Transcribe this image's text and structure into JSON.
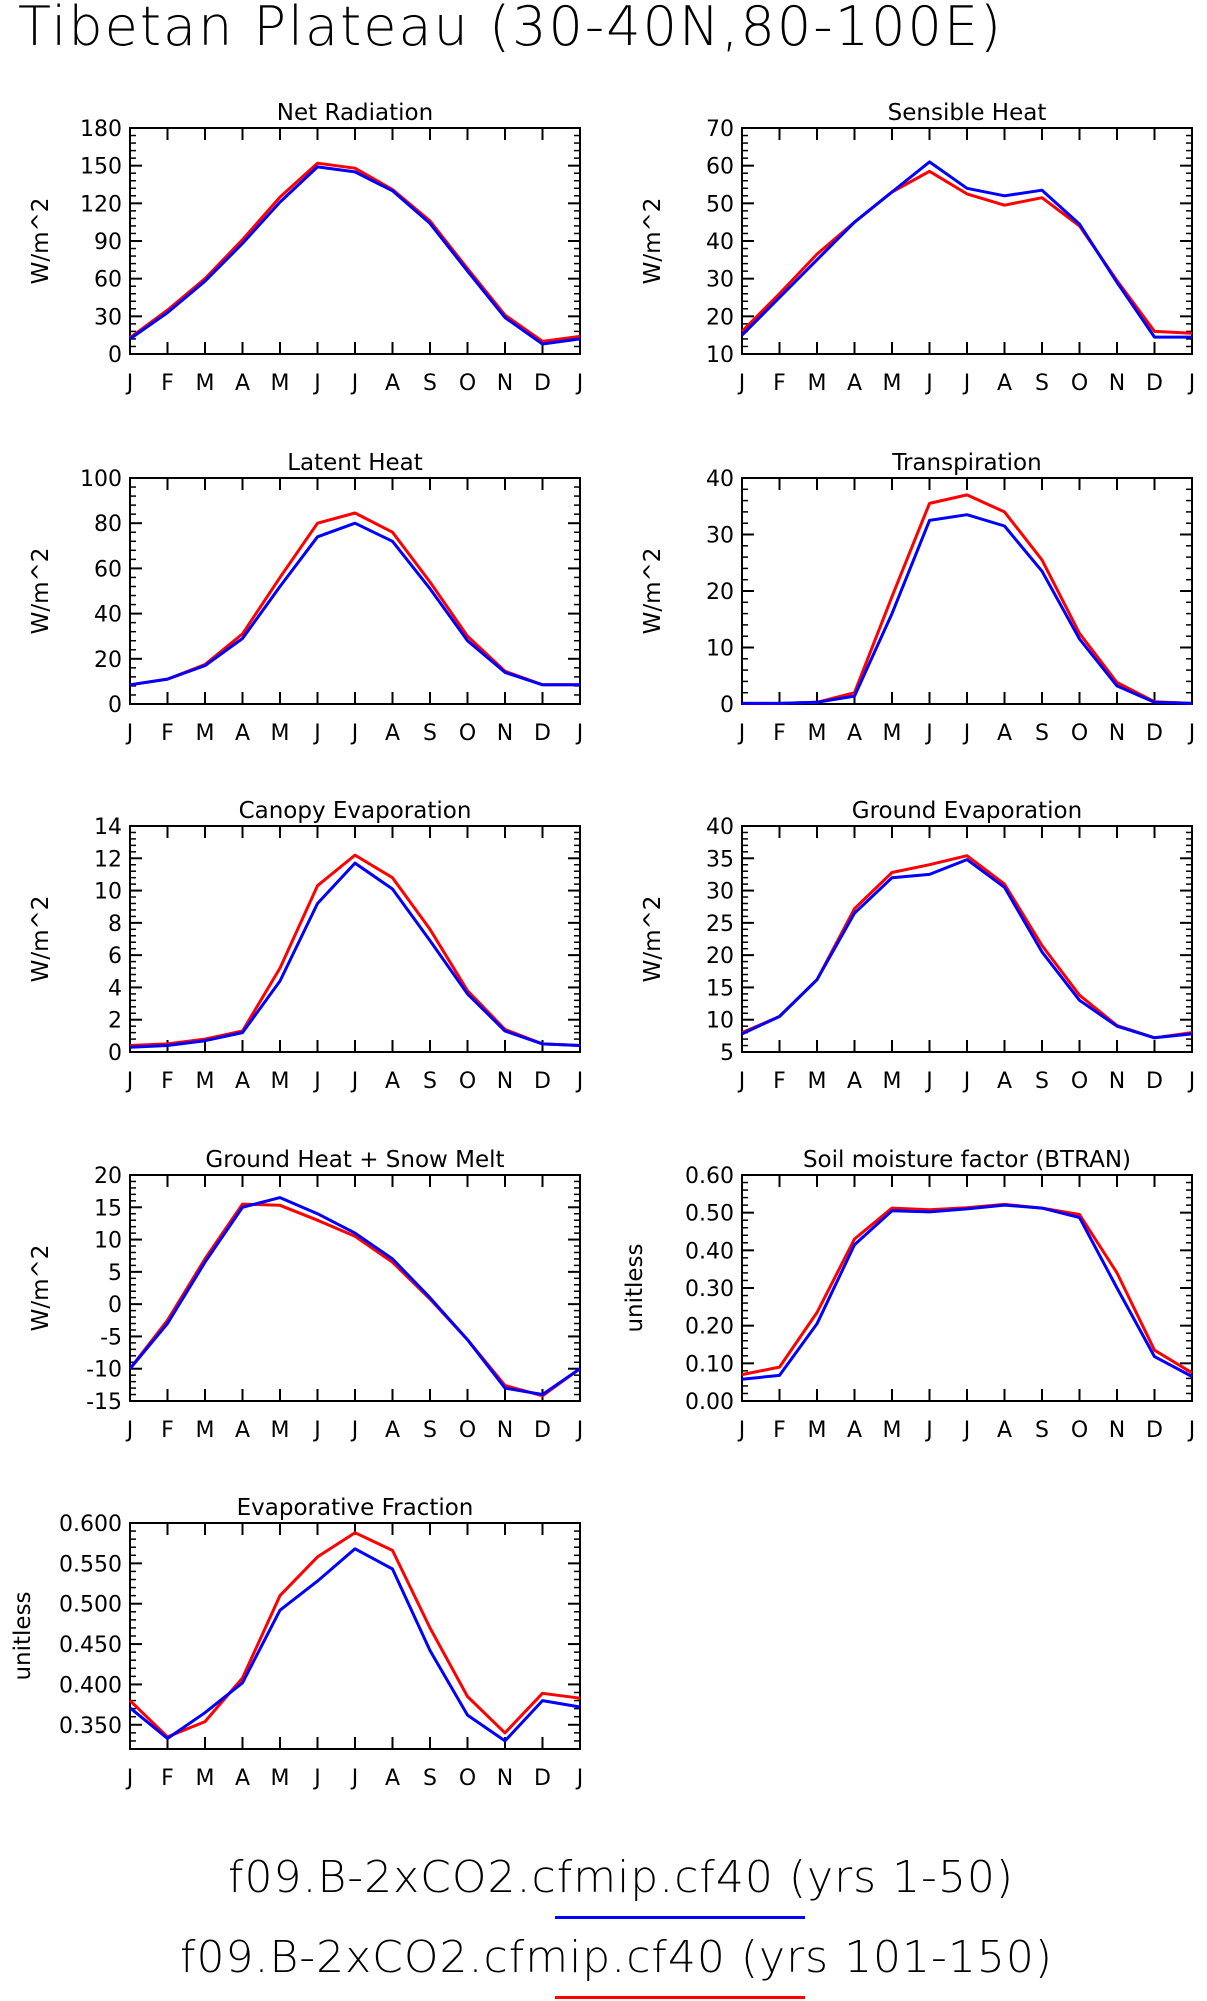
{
  "title": "Tibetan Plateau (30-40N,80-100E)",
  "colors": {
    "series1": "#0000ff",
    "series2": "#ff0000",
    "axis": "#000000"
  },
  "legend": [
    {
      "label": "f09.B-2xCO2.cfmip.cf40 (yrs 1-50)",
      "color": "#0000ff"
    },
    {
      "label": "f09.B-2xCO2.cfmip.cf40 (yrs 101-150)",
      "color": "#ff0000"
    }
  ],
  "chart_data": [
    {
      "type": "line",
      "title": "Net Radiation",
      "ylabel": "W/m^2",
      "x": [
        "J",
        "F",
        "M",
        "A",
        "M",
        "J",
        "J",
        "A",
        "S",
        "O",
        "N",
        "D",
        "J"
      ],
      "ylim": [
        0,
        180
      ],
      "yticks": [
        "0",
        "30",
        "60",
        "90",
        "120",
        "150",
        "180"
      ],
      "series": [
        {
          "name": "f09.B-2xCO2.cfmip.cf40 (yrs 1-50)",
          "color": "#0000ff",
          "values": [
            12,
            33,
            58,
            88,
            121,
            149,
            145,
            130,
            104,
            66,
            29,
            8,
            12
          ]
        },
        {
          "name": "f09.B-2xCO2.cfmip.cf40 (yrs 101-150)",
          "color": "#ff0000",
          "values": [
            13,
            35,
            60,
            91,
            125,
            152,
            148,
            131,
            106,
            68,
            31,
            10,
            14
          ]
        }
      ]
    },
    {
      "type": "line",
      "title": "Sensible Heat",
      "ylabel": "W/m^2",
      "x": [
        "J",
        "F",
        "M",
        "A",
        "M",
        "J",
        "J",
        "A",
        "S",
        "O",
        "N",
        "D",
        "J"
      ],
      "ylim": [
        10,
        70
      ],
      "yticks": [
        "10",
        "20",
        "30",
        "40",
        "50",
        "60",
        "70"
      ],
      "series": [
        {
          "name": "f09.B-2xCO2.cfmip.cf40 (yrs 1-50)",
          "color": "#0000ff",
          "values": [
            15,
            25,
            35,
            45,
            53,
            61,
            54,
            52,
            53.5,
            44.5,
            29,
            14.5,
            14.5
          ]
        },
        {
          "name": "f09.B-2xCO2.cfmip.cf40 (yrs 101-150)",
          "color": "#ff0000",
          "values": [
            16,
            26,
            36.5,
            45,
            53,
            58.5,
            52.5,
            49.5,
            51.5,
            44,
            29.5,
            16,
            15.5
          ]
        }
      ]
    },
    {
      "type": "line",
      "title": "Latent Heat",
      "ylabel": "W/m^2",
      "x": [
        "J",
        "F",
        "M",
        "A",
        "M",
        "J",
        "J",
        "A",
        "S",
        "O",
        "N",
        "D",
        "J"
      ],
      "ylim": [
        0,
        100
      ],
      "yticks": [
        "0",
        "20",
        "40",
        "60",
        "80",
        "100"
      ],
      "series": [
        {
          "name": "f09.B-2xCO2.cfmip.cf40 (yrs 1-50)",
          "color": "#0000ff",
          "values": [
            8.5,
            11,
            17,
            29,
            52,
            74,
            80,
            72,
            51,
            28,
            14,
            8.5,
            8.5
          ]
        },
        {
          "name": "f09.B-2xCO2.cfmip.cf40 (yrs 101-150)",
          "color": "#ff0000",
          "values": [
            8.5,
            11,
            17.5,
            31,
            56,
            80,
            84.5,
            76,
            54,
            30,
            14.5,
            8.5,
            8.5
          ]
        }
      ]
    },
    {
      "type": "line",
      "title": "Transpiration",
      "ylabel": "W/m^2",
      "x": [
        "J",
        "F",
        "M",
        "A",
        "M",
        "J",
        "J",
        "A",
        "S",
        "O",
        "N",
        "D",
        "J"
      ],
      "ylim": [
        0,
        40
      ],
      "yticks": [
        "0",
        "10",
        "20",
        "30",
        "40"
      ],
      "series": [
        {
          "name": "f09.B-2xCO2.cfmip.cf40 (yrs 1-50)",
          "color": "#0000ff",
          "values": [
            0.1,
            0.1,
            0.3,
            1.4,
            16,
            32.5,
            33.5,
            31.5,
            23.5,
            11.5,
            3.2,
            0.3,
            0.1
          ]
        },
        {
          "name": "f09.B-2xCO2.cfmip.cf40 (yrs 101-150)",
          "color": "#ff0000",
          "values": [
            0.1,
            0.1,
            0.3,
            2,
            19,
            35.5,
            37,
            34,
            25.5,
            12.5,
            3.8,
            0.4,
            0.1
          ]
        }
      ]
    },
    {
      "type": "line",
      "title": "Canopy Evaporation",
      "ylabel": "W/m^2",
      "x": [
        "J",
        "F",
        "M",
        "A",
        "M",
        "J",
        "J",
        "A",
        "S",
        "O",
        "N",
        "D",
        "J"
      ],
      "ylim": [
        0,
        14
      ],
      "yticks": [
        "0",
        "2",
        "4",
        "6",
        "8",
        "10",
        "12",
        "14"
      ],
      "series": [
        {
          "name": "f09.B-2xCO2.cfmip.cf40 (yrs 1-50)",
          "color": "#0000ff",
          "values": [
            0.3,
            0.4,
            0.7,
            1.2,
            4.4,
            9.2,
            11.7,
            10.1,
            6.9,
            3.6,
            1.3,
            0.5,
            0.4
          ]
        },
        {
          "name": "f09.B-2xCO2.cfmip.cf40 (yrs 101-150)",
          "color": "#ff0000",
          "values": [
            0.4,
            0.5,
            0.8,
            1.3,
            5.2,
            10.3,
            12.2,
            10.8,
            7.6,
            3.8,
            1.4,
            0.5,
            0.4
          ]
        }
      ]
    },
    {
      "type": "line",
      "title": "Ground Evaporation",
      "ylabel": "W/m^2",
      "x": [
        "J",
        "F",
        "M",
        "A",
        "M",
        "J",
        "J",
        "A",
        "S",
        "O",
        "N",
        "D",
        "J"
      ],
      "ylim": [
        5,
        40
      ],
      "yticks": [
        "5",
        "10",
        "15",
        "20",
        "25",
        "30",
        "35",
        "40"
      ],
      "series": [
        {
          "name": "f09.B-2xCO2.cfmip.cf40 (yrs 1-50)",
          "color": "#0000ff",
          "values": [
            7.8,
            10.5,
            16.2,
            26.5,
            32,
            32.5,
            34.8,
            30.5,
            20.5,
            13,
            9,
            7.2,
            7.8
          ]
        },
        {
          "name": "f09.B-2xCO2.cfmip.cf40 (yrs 101-150)",
          "color": "#ff0000",
          "values": [
            8,
            10.5,
            16.2,
            27.2,
            32.8,
            34,
            35.4,
            31,
            21.5,
            13.8,
            9.1,
            7.2,
            8
          ]
        }
      ]
    },
    {
      "type": "line",
      "title": "Ground Heat + Snow Melt",
      "ylabel": "W/m^2",
      "x": [
        "J",
        "F",
        "M",
        "A",
        "M",
        "J",
        "J",
        "A",
        "S",
        "O",
        "N",
        "D",
        "J"
      ],
      "ylim": [
        -15,
        20
      ],
      "yticks": [
        "-15",
        "-10",
        "-5",
        "0",
        "5",
        "10",
        "15",
        "20"
      ],
      "series": [
        {
          "name": "f09.B-2xCO2.cfmip.cf40 (yrs 1-50)",
          "color": "#0000ff",
          "values": [
            -10,
            -3,
            6.5,
            15,
            16.5,
            14,
            11,
            7,
            1,
            -5.5,
            -13,
            -14,
            -10
          ]
        },
        {
          "name": "f09.B-2xCO2.cfmip.cf40 (yrs 101-150)",
          "color": "#ff0000",
          "values": [
            -10,
            -2.5,
            7,
            15.5,
            15.3,
            13,
            10.5,
            6.5,
            0.8,
            -5.5,
            -12.6,
            -14.2,
            -10
          ]
        }
      ]
    },
    {
      "type": "line",
      "title": "Soil moisture factor (BTRAN)",
      "ylabel": "unitless",
      "x": [
        "J",
        "F",
        "M",
        "A",
        "M",
        "J",
        "J",
        "A",
        "S",
        "O",
        "N",
        "D",
        "J"
      ],
      "ylim": [
        0,
        0.6
      ],
      "yticks": [
        "0.00",
        "0.10",
        "0.20",
        "0.30",
        "0.40",
        "0.50",
        "0.60"
      ],
      "series": [
        {
          "name": "f09.B-2xCO2.cfmip.cf40 (yrs 1-50)",
          "color": "#0000ff",
          "values": [
            0.058,
            0.068,
            0.205,
            0.415,
            0.505,
            0.502,
            0.51,
            0.52,
            0.512,
            0.487,
            0.3,
            0.118,
            0.065
          ]
        },
        {
          "name": "f09.B-2xCO2.cfmip.cf40 (yrs 101-150)",
          "color": "#ff0000",
          "values": [
            0.07,
            0.09,
            0.235,
            0.43,
            0.512,
            0.508,
            0.513,
            0.522,
            0.512,
            0.495,
            0.34,
            0.135,
            0.075
          ]
        }
      ]
    },
    {
      "type": "line",
      "title": "Evaporative Fraction",
      "ylabel": "unitless",
      "x": [
        "J",
        "F",
        "M",
        "A",
        "M",
        "J",
        "J",
        "A",
        "S",
        "O",
        "N",
        "D",
        "J"
      ],
      "ylim": [
        0.32,
        0.6
      ],
      "yticks": [
        "0.350",
        "0.400",
        "0.450",
        "0.500",
        "0.550",
        "0.600"
      ],
      "series": [
        {
          "name": "f09.B-2xCO2.cfmip.cf40 (yrs 1-50)",
          "color": "#0000ff",
          "values": [
            0.371,
            0.333,
            0.365,
            0.402,
            0.492,
            0.528,
            0.568,
            0.543,
            0.442,
            0.362,
            0.33,
            0.38,
            0.372
          ]
        },
        {
          "name": "f09.B-2xCO2.cfmip.cf40 (yrs 101-150)",
          "color": "#ff0000",
          "values": [
            0.38,
            0.335,
            0.354,
            0.408,
            0.51,
            0.558,
            0.588,
            0.566,
            0.47,
            0.385,
            0.34,
            0.389,
            0.383
          ]
        }
      ]
    }
  ]
}
